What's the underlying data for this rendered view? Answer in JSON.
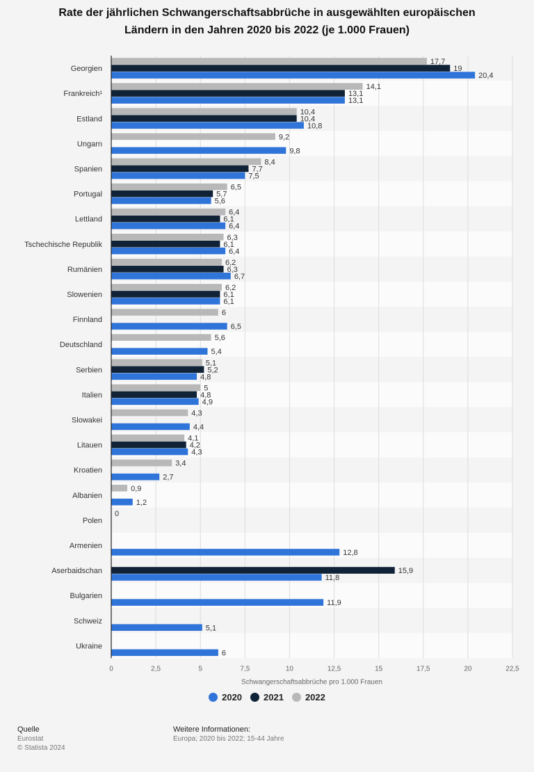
{
  "title_line1": "Rate der jährlichen Schwangerschaftsabbrüche in ausgewählten europäischen",
  "title_line2": "Ländern in den Jahren 2020 bis 2022 (je 1.000 Frauen)",
  "legend": [
    {
      "label": "2020",
      "color": "#2f74d9"
    },
    {
      "label": "2021",
      "color": "#0f2236"
    },
    {
      "label": "2022",
      "color": "#b8b8b8"
    }
  ],
  "footer": {
    "source_heading": "Quelle",
    "source_lines": [
      "Eurostat",
      "© Statista 2024"
    ],
    "info_heading": "Weitere Informationen:",
    "info_line": "Europa; 2020 bis 2022; 15-44 Jahre"
  },
  "chart_data": {
    "type": "bar",
    "orientation": "horizontal",
    "xlabel": "Schwangerschaftsabbrüche pro 1.000 Frauen",
    "xlim": [
      0,
      22.5
    ],
    "xticks": [
      0,
      2.5,
      5,
      7.5,
      10,
      12.5,
      15,
      17.5,
      20,
      22.5
    ],
    "xtick_labels": [
      "0",
      "2,5",
      "5",
      "7,5",
      "10",
      "12,5",
      "15",
      "17,5",
      "20",
      "22,5"
    ],
    "grid": true,
    "legend_position": "bottom",
    "categories": [
      "Georgien",
      "Frankreich¹",
      "Estland",
      "Ungarn",
      "Spanien",
      "Portugal",
      "Lettland",
      "Tschechische Republik",
      "Rumänien",
      "Slowenien",
      "Finnland",
      "Deutschland",
      "Serbien",
      "Italien",
      "Slowakei",
      "Litauen",
      "Kroatien",
      "Albanien",
      "Polen",
      "Armenien",
      "Aserbaidschan",
      "Bulgarien",
      "Schweiz",
      "Ukraine"
    ],
    "series": [
      {
        "name": "2022",
        "color": "#b8b8b8",
        "values": [
          17.7,
          14.1,
          10.4,
          9.2,
          8.4,
          6.5,
          6.4,
          6.3,
          6.2,
          6.2,
          6,
          5.6,
          5.1,
          5,
          4.3,
          4.1,
          3.4,
          0.9,
          0,
          null,
          null,
          null,
          null,
          null
        ],
        "labels": [
          "17,7",
          "14,1",
          "10,4",
          "9,2",
          "8,4",
          "6,5",
          "6,4",
          "6,3",
          "6,2",
          "6,2",
          "6",
          "5,6",
          "5,1",
          "5",
          "4,3",
          "4,1",
          "3,4",
          "0,9",
          "0",
          null,
          null,
          null,
          null,
          null
        ]
      },
      {
        "name": "2021",
        "color": "#0f2236",
        "values": [
          19,
          13.1,
          10.4,
          null,
          7.7,
          5.7,
          6.1,
          6.1,
          6.3,
          6.1,
          null,
          null,
          5.2,
          4.8,
          null,
          4.2,
          null,
          null,
          null,
          null,
          15.9,
          null,
          null,
          null
        ],
        "labels": [
          "19",
          "13,1",
          "10,4",
          null,
          "7,7",
          "5,7",
          "6,1",
          "6,1",
          "6,3",
          "6,1",
          null,
          null,
          "5,2",
          "4,8",
          null,
          "4,2",
          null,
          null,
          null,
          null,
          "15,9",
          null,
          null,
          null
        ]
      },
      {
        "name": "2020",
        "color": "#2f74d9",
        "values": [
          20.4,
          13.1,
          10.8,
          9.8,
          7.5,
          5.6,
          6.4,
          6.4,
          6.7,
          6.1,
          6.5,
          5.4,
          4.8,
          4.9,
          4.4,
          4.3,
          2.7,
          1.2,
          null,
          12.8,
          11.8,
          11.9,
          5.1,
          6
        ],
        "labels": [
          "20,4",
          "13,1",
          "10,8",
          "9,8",
          "7,5",
          "5,6",
          "6,4",
          "6,4",
          "6,7",
          "6,1",
          "6,5",
          "5,4",
          "4,8",
          "4,9",
          "4,4",
          "4,3",
          "2,7",
          "1,2",
          null,
          "12,8",
          "11,8",
          "11,9",
          "5,1",
          "6"
        ]
      }
    ]
  }
}
